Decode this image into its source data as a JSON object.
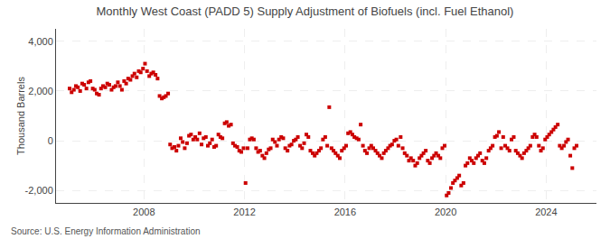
{
  "chart_data": {
    "type": "scatter",
    "title": "Monthly West Coast (PADD 5) Supply Adjustment of Biofuels (incl. Fuel Ethanol)",
    "ylabel": "Thousand Barrels",
    "annotations": [
      "Source: U.S. Energy Information Administration"
    ],
    "color": "#cc0000",
    "marker": "square",
    "grid": true,
    "xlim": [
      2004.5,
      2026.0
    ],
    "xticks": [
      2008,
      2012,
      2016,
      2020,
      2024
    ],
    "ylim": [
      -2500,
      4500
    ],
    "yticks": [
      {
        "value": -2000,
        "label": "-2,000"
      },
      0,
      {
        "value": 2000,
        "label": "2,000"
      },
      {
        "value": 4000,
        "label": "4,000"
      }
    ],
    "x": [
      2005.04,
      2005.12,
      2005.21,
      2005.29,
      2005.37,
      2005.46,
      2005.54,
      2005.62,
      2005.71,
      2005.79,
      2005.87,
      2005.96,
      2006.04,
      2006.12,
      2006.21,
      2006.29,
      2006.37,
      2006.46,
      2006.54,
      2006.62,
      2006.71,
      2006.79,
      2006.87,
      2006.96,
      2007.04,
      2007.12,
      2007.21,
      2007.29,
      2007.37,
      2007.46,
      2007.54,
      2007.62,
      2007.71,
      2007.79,
      2007.87,
      2007.96,
      2008.04,
      2008.12,
      2008.21,
      2008.29,
      2008.37,
      2008.46,
      2008.54,
      2008.62,
      2008.71,
      2008.79,
      2008.87,
      2008.96,
      2009.04,
      2009.12,
      2009.21,
      2009.29,
      2009.37,
      2009.46,
      2009.54,
      2009.62,
      2009.71,
      2009.79,
      2009.87,
      2009.96,
      2010.04,
      2010.12,
      2010.21,
      2010.29,
      2010.37,
      2010.46,
      2010.54,
      2010.62,
      2010.71,
      2010.79,
      2010.87,
      2010.96,
      2011.04,
      2011.12,
      2011.21,
      2011.29,
      2011.37,
      2011.46,
      2011.54,
      2011.62,
      2011.71,
      2011.79,
      2011.87,
      2011.96,
      2012.04,
      2012.12,
      2012.21,
      2012.29,
      2012.37,
      2012.46,
      2012.54,
      2012.62,
      2012.71,
      2012.79,
      2012.87,
      2012.96,
      2013.04,
      2013.12,
      2013.21,
      2013.29,
      2013.37,
      2013.46,
      2013.54,
      2013.62,
      2013.71,
      2013.79,
      2013.87,
      2013.96,
      2014.04,
      2014.12,
      2014.21,
      2014.29,
      2014.37,
      2014.46,
      2014.54,
      2014.62,
      2014.71,
      2014.79,
      2014.87,
      2014.96,
      2015.04,
      2015.12,
      2015.21,
      2015.29,
      2015.37,
      2015.46,
      2015.54,
      2015.62,
      2015.71,
      2015.79,
      2015.87,
      2015.96,
      2016.04,
      2016.12,
      2016.21,
      2016.29,
      2016.37,
      2016.46,
      2016.54,
      2016.62,
      2016.71,
      2016.79,
      2016.87,
      2016.96,
      2017.04,
      2017.12,
      2017.21,
      2017.29,
      2017.37,
      2017.46,
      2017.54,
      2017.62,
      2017.71,
      2017.79,
      2017.87,
      2017.96,
      2018.04,
      2018.12,
      2018.21,
      2018.29,
      2018.37,
      2018.46,
      2018.54,
      2018.62,
      2018.71,
      2018.79,
      2018.87,
      2018.96,
      2019.04,
      2019.12,
      2019.21,
      2019.29,
      2019.37,
      2019.46,
      2019.54,
      2019.62,
      2019.71,
      2019.79,
      2019.87,
      2019.96,
      2020.04,
      2020.12,
      2020.21,
      2020.29,
      2020.37,
      2020.46,
      2020.54,
      2020.62,
      2020.71,
      2020.79,
      2020.87,
      2020.96,
      2021.04,
      2021.12,
      2021.21,
      2021.29,
      2021.37,
      2021.46,
      2021.54,
      2021.62,
      2021.71,
      2021.79,
      2021.87,
      2021.96,
      2022.04,
      2022.12,
      2022.21,
      2022.29,
      2022.37,
      2022.46,
      2022.54,
      2022.62,
      2022.71,
      2022.79,
      2022.87,
      2022.96,
      2023.04,
      2023.12,
      2023.21,
      2023.29,
      2023.37,
      2023.46,
      2023.54,
      2023.62,
      2023.71,
      2023.79,
      2023.87,
      2023.96,
      2024.04,
      2024.12,
      2024.21,
      2024.29,
      2024.37,
      2024.46,
      2024.54,
      2024.62,
      2024.71,
      2024.79,
      2024.87,
      2024.96,
      2025.04,
      2025.12,
      2025.21
    ],
    "values": [
      2100,
      1950,
      2050,
      2200,
      2150,
      2000,
      2300,
      2250,
      2100,
      2350,
      2400,
      2100,
      2050,
      1900,
      1850,
      2100,
      2200,
      2150,
      2300,
      2250,
      2050,
      2150,
      2200,
      2350,
      2200,
      2050,
      2400,
      2300,
      2500,
      2450,
      2600,
      2700,
      2550,
      2800,
      2750,
      2900,
      3100,
      2800,
      2600,
      2700,
      2750,
      2650,
      2500,
      1800,
      1700,
      1750,
      1800,
      1900,
      -150,
      -300,
      -250,
      -400,
      -200,
      100,
      -50,
      -300,
      -100,
      200,
      250,
      50,
      150,
      50,
      300,
      -150,
      100,
      150,
      -200,
      -100,
      50,
      -250,
      -200,
      250,
      150,
      100,
      700,
      750,
      600,
      650,
      -100,
      -200,
      -250,
      -400,
      -450,
      -300,
      -1700,
      -300,
      50,
      100,
      50,
      -300,
      -450,
      -400,
      -600,
      -700,
      -500,
      -350,
      -300,
      50,
      -50,
      -200,
      50,
      150,
      100,
      -300,
      -400,
      -200,
      -150,
      0,
      50,
      150,
      -200,
      -300,
      -100,
      250,
      150,
      -400,
      -500,
      -600,
      -500,
      -400,
      -300,
      50,
      150,
      -200,
      1350,
      -300,
      -400,
      -500,
      -600,
      -700,
      -400,
      -300,
      -200,
      300,
      350,
      250,
      150,
      100,
      50,
      650,
      -200,
      -400,
      -500,
      -300,
      -200,
      -300,
      -400,
      -500,
      -600,
      -700,
      -500,
      -400,
      -300,
      -200,
      -150,
      0,
      50,
      -200,
      150,
      -300,
      -500,
      -600,
      -800,
      -700,
      -800,
      -1000,
      -900,
      -700,
      -600,
      -500,
      -400,
      -800,
      -900,
      -700,
      -600,
      -500,
      -600,
      -700,
      -300,
      -200,
      -2200,
      -2100,
      -1900,
      -1700,
      -1600,
      -1500,
      -1400,
      -1800,
      -1700,
      -1000,
      -900,
      -700,
      -800,
      -900,
      -700,
      -600,
      -500,
      -800,
      -900,
      -700,
      -400,
      -300,
      -200,
      150,
      200,
      350,
      -300,
      150,
      -200,
      -300,
      -400,
      50,
      150,
      -400,
      -500,
      -600,
      -700,
      -500,
      -400,
      -300,
      -200,
      150,
      250,
      150,
      -200,
      -400,
      -300,
      50,
      150,
      250,
      350,
      450,
      550,
      650,
      -200,
      -300,
      -200,
      -50,
      50,
      -600,
      -1100,
      -300,
      -200
    ]
  }
}
